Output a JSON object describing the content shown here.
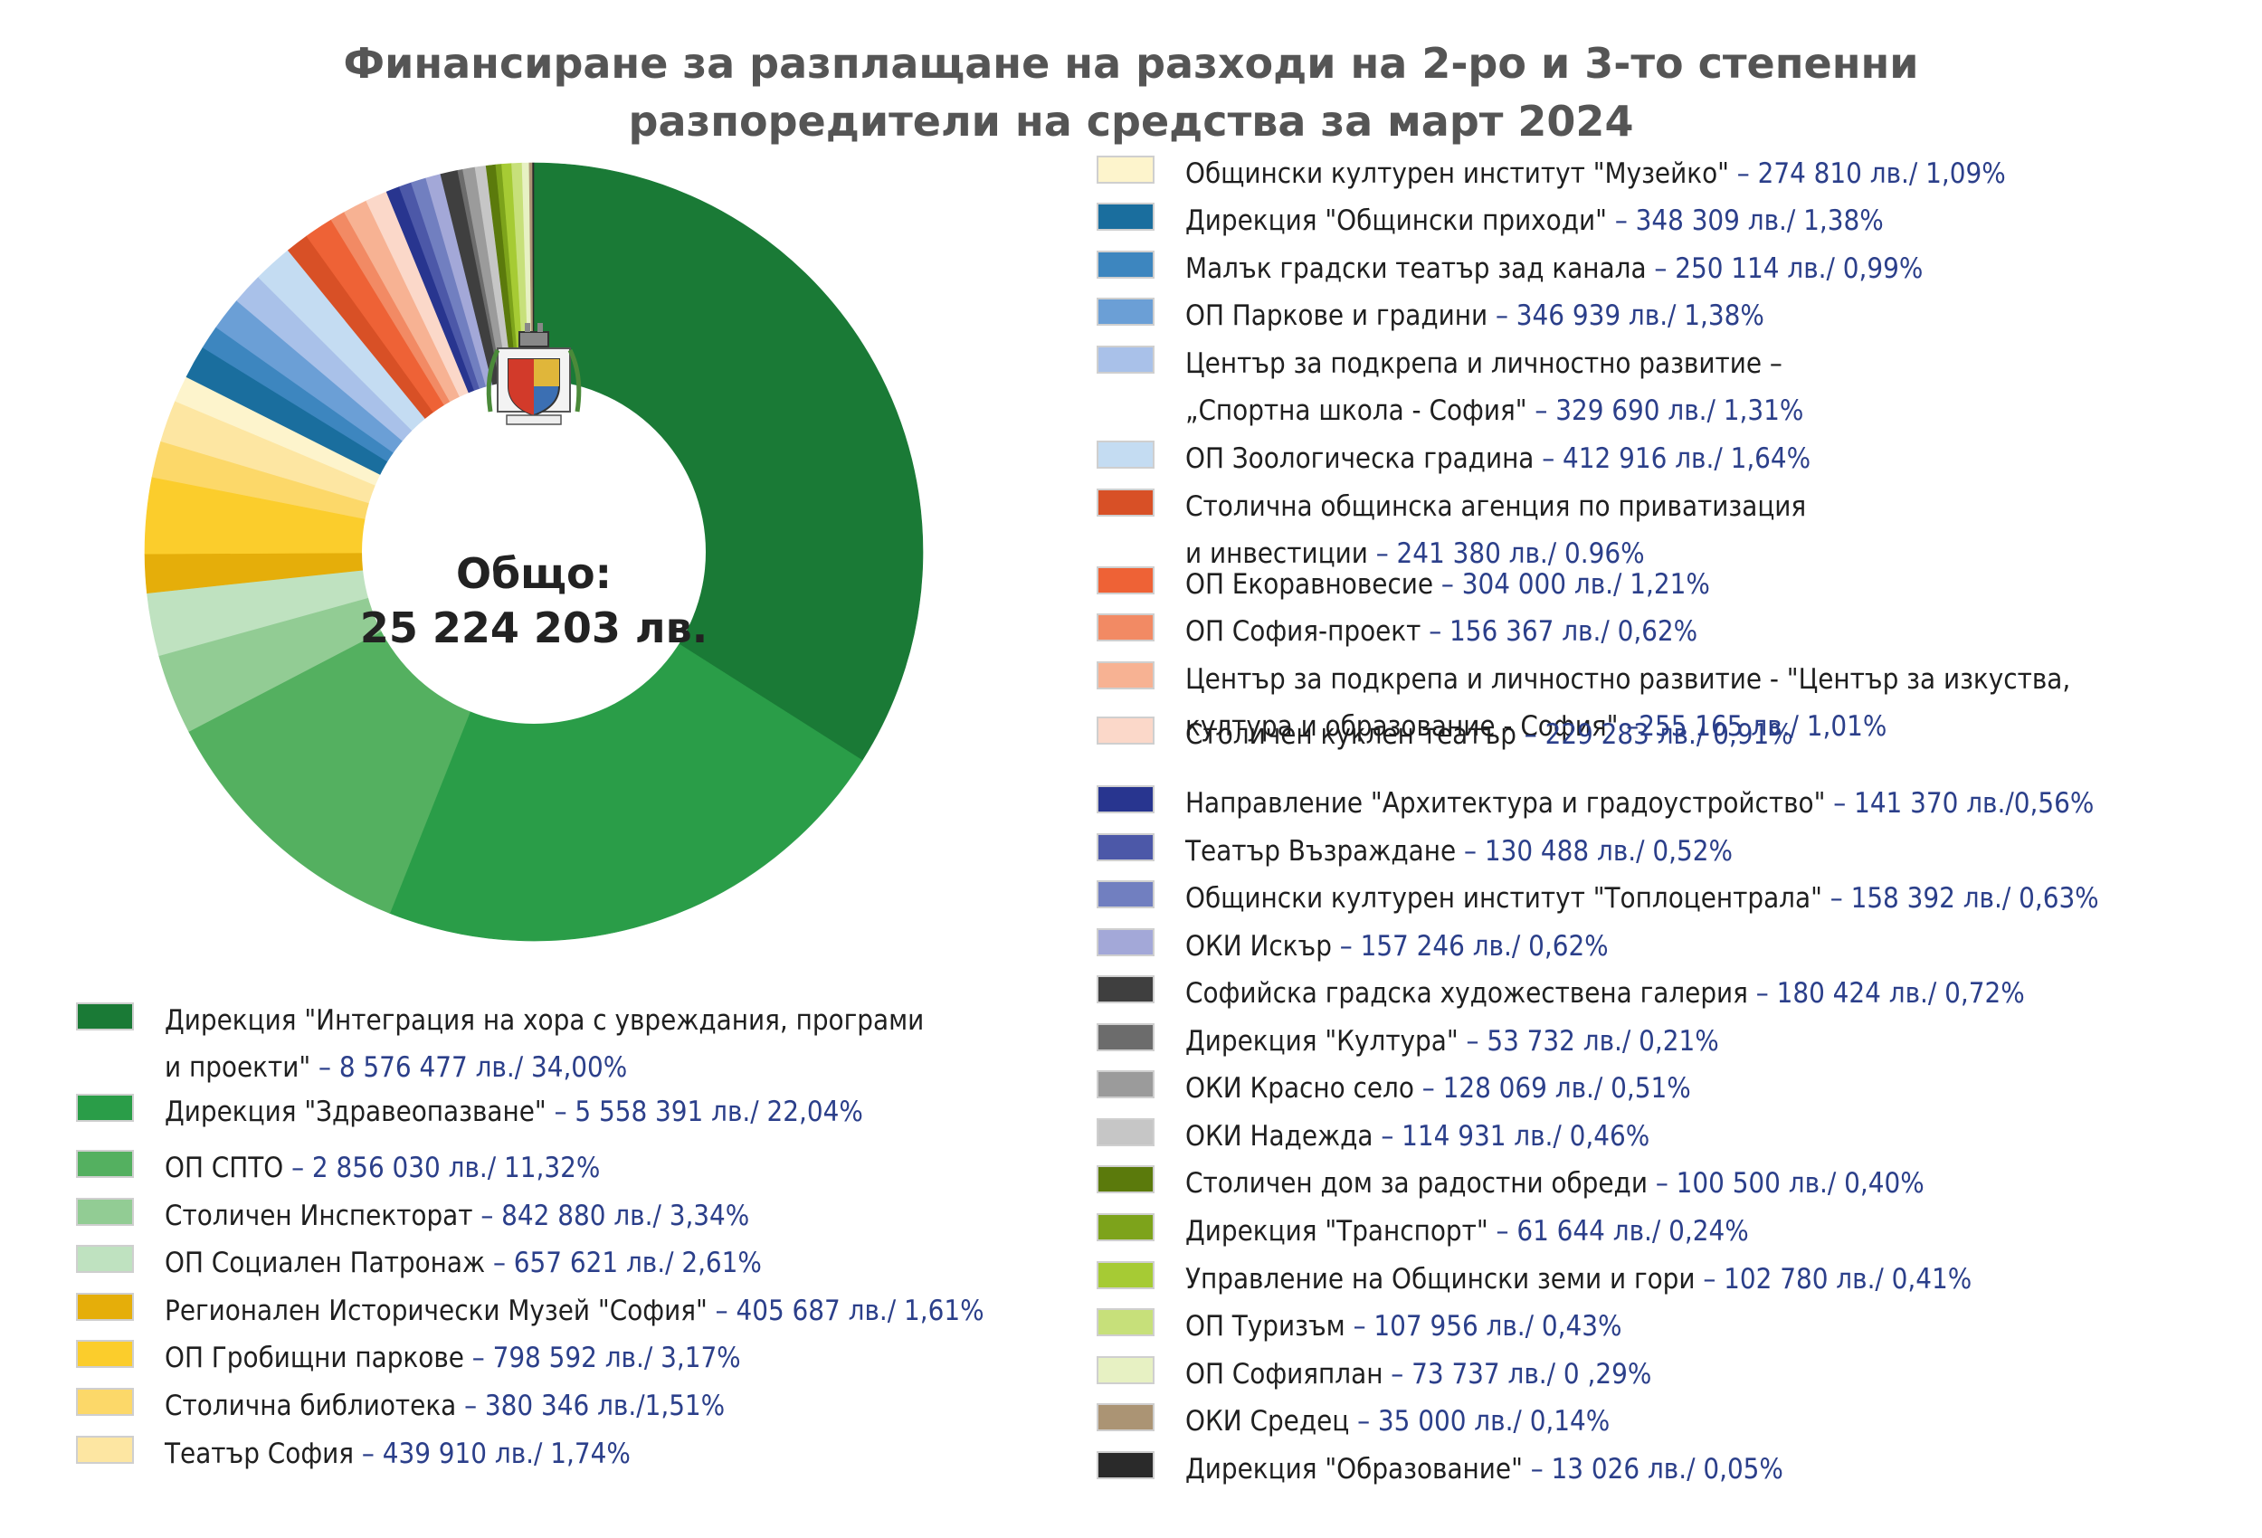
{
  "chart_data": {
    "type": "pie",
    "title_lines": [
      "Финансиране за разплащане на разходи на 2-ро и 3-то степенни",
      "разпоредители на средства за март 2024"
    ],
    "center_label": [
      "Общо:",
      "25 224 203 лв."
    ],
    "slices": [
      {
        "label": "Дирекция \"Интеграция на хора с увреждания, програми и проекти\"",
        "text_lines": [
          "Дирекция \"Интеграция на хора с увреждания, програми",
          "и проекти\""
        ],
        "value_text": " – 8 576 477 лв./ 34,00%",
        "value": 8576477,
        "percent": 34.0,
        "color": "#1a7a36"
      },
      {
        "label": "Дирекция \"Здравеопазване\"",
        "text_lines": [
          "Дирекция \"Здравеопазване\""
        ],
        "value_text": " – 5 558 391 лв./ 22,04%",
        "value": 5558391,
        "percent": 22.04,
        "color": "#2a9d48"
      },
      {
        "label": "ОП СПТО",
        "text_lines": [
          "ОП СПТО"
        ],
        "value_text": " – 2 856 030 лв./ 11,32%",
        "value": 2856030,
        "percent": 11.32,
        "color": "#54b060"
      },
      {
        "label": "Столичен Инспекторат",
        "text_lines": [
          "Столичен Инспекторат"
        ],
        "value_text": " – 842 880 лв./ 3,34%",
        "value": 842880,
        "percent": 3.34,
        "color": "#92cc94"
      },
      {
        "label": "ОП Социален Патронаж",
        "text_lines": [
          "ОП Социален Патронаж"
        ],
        "value_text": " – 657 621 лв./ 2,61%",
        "value": 657621,
        "percent": 2.61,
        "color": "#bfe2c0"
      },
      {
        "label": "Регионален Исторически Музей \"София\"",
        "text_lines": [
          "Регионален Исторически Музей \"София\""
        ],
        "value_text": " – 405 687 лв./ 1,61%",
        "value": 405687,
        "percent": 1.61,
        "color": "#e5ae0a"
      },
      {
        "label": "ОП Гробищни паркове",
        "text_lines": [
          "ОП Гробищни паркове"
        ],
        "value_text": " – 798 592 лв./ 3,17%",
        "value": 798592,
        "percent": 3.17,
        "color": "#fbcd2c"
      },
      {
        "label": "Столична библиотека",
        "text_lines": [
          "Столична библиотека"
        ],
        "value_text": " – 380 346 лв./1,51%",
        "value": 380346,
        "percent": 1.51,
        "color": "#fcd869"
      },
      {
        "label": "Театър София",
        "text_lines": [
          "Театър София"
        ],
        "value_text": " – 439 910 лв./ 1,74%",
        "value": 439910,
        "percent": 1.74,
        "color": "#fde6a2"
      },
      {
        "label": "Общински културен институт \"Музейко\"",
        "text_lines": [
          "Общински културен институт \"Музейко\""
        ],
        "value_text": " – 274 810 лв./ 1,09%",
        "value": 274810,
        "percent": 1.09,
        "color": "#fdf4cc"
      },
      {
        "label": "Дирекция \"Общински приходи\"",
        "text_lines": [
          "Дирекция \"Общински приходи\""
        ],
        "value_text": " – 348 309 лв./ 1,38%",
        "value": 348309,
        "percent": 1.38,
        "color": "#1a6e9e"
      },
      {
        "label": "Малък градски театър зад канала",
        "text_lines": [
          "Малък градски театър зад канала"
        ],
        "value_text": " – 250 114 лв./ 0,99%",
        "value": 250114,
        "percent": 0.99,
        "color": "#3d86bf"
      },
      {
        "label": "ОП Паркове и градини",
        "text_lines": [
          "ОП Паркове и градини"
        ],
        "value_text": " – 346 939 лв./ 1,38%",
        "value": 346939,
        "percent": 1.38,
        "color": "#6b9fd6"
      },
      {
        "label": "Център за подкрепа и личностно развитие – „Спортна школа - София“",
        "text_lines": [
          "Център за подкрепа и личностно развитие –",
          "„Спортна школа - София\""
        ],
        "value_text": " – 329 690 лв./ 1,31%",
        "value": 329690,
        "percent": 1.31,
        "color": "#a9c1e9"
      },
      {
        "label": "ОП Зоологическа градина",
        "text_lines": [
          "ОП Зоологическа градина"
        ],
        "value_text": " – 412 916 лв./ 1,64%",
        "value": 412916,
        "percent": 1.64,
        "color": "#c4dcf2"
      },
      {
        "label": "Столична общинска агенция по приватизация и инвестиции",
        "text_lines": [
          "Столична общинска агенция по приватизация",
          "и инвестиции"
        ],
        "value_text": " – 241 380 лв./ 0.96%",
        "value": 241380,
        "percent": 0.96,
        "color": "#d85026"
      },
      {
        "label": "ОП Екоравновесие",
        "text_lines": [
          "ОП Екоравновесие"
        ],
        "value_text": " – 304 000 лв./ 1,21%",
        "value": 304000,
        "percent": 1.21,
        "color": "#ee6236"
      },
      {
        "label": "ОП София-проект",
        "text_lines": [
          "ОП София-проект"
        ],
        "value_text": " – 156 367 лв./ 0,62%",
        "value": 156367,
        "percent": 0.62,
        "color": "#f28a64"
      },
      {
        "label": "Център за подкрепа и личностно развитие - \"Център за изкуства, култура и образование - София\"",
        "text_lines": [
          "Център за подкрепа и личностно развитие - \"Център за изкуства,",
          "култура и образование - София\""
        ],
        "value_text": " –255 165 лв./ 1,01%",
        "value": 255165,
        "percent": 1.01,
        "color": "#f7b293"
      },
      {
        "label": "Столичен куклен театър",
        "text_lines": [
          "Столичен куклен театър"
        ],
        "value_text": " – 229 283 лв./ 0,91%",
        "value": 229283,
        "percent": 0.91,
        "color": "#fbd8c9"
      },
      {
        "label": "Направление \"Архитектура и градоустройство\"",
        "text_lines": [
          "Направление \"Архитектура и градоустройство\""
        ],
        "value_text": " – 141 370 лв./0,56%",
        "value": 141370,
        "percent": 0.56,
        "color": "#28358f"
      },
      {
        "label": "Театър Възраждане",
        "text_lines": [
          "Театър Възраждане"
        ],
        "value_text": " – 130 488 лв./ 0,52%",
        "value": 130488,
        "percent": 0.52,
        "color": "#4c58a8"
      },
      {
        "label": "Общински културен институт \"Топлоцентрала\"",
        "text_lines": [
          "Общински културен институт \"Топлоцентрала\""
        ],
        "value_text": " – 158 392 лв./ 0,63%",
        "value": 158392,
        "percent": 0.63,
        "color": "#717fc0"
      },
      {
        "label": "ОКИ Искър",
        "text_lines": [
          "ОКИ Искър"
        ],
        "value_text": " – 157 246 лв./ 0,62%",
        "value": 157246,
        "percent": 0.62,
        "color": "#a3a8d8"
      },
      {
        "label": "Софийска градска художествена галерия",
        "text_lines": [
          "Софийска градска художествена галерия"
        ],
        "value_text": " – 180 424 лв./ 0,72%",
        "value": 180424,
        "percent": 0.72,
        "color": "#3f3f3f"
      },
      {
        "label": "Дирекция \"Култура\"",
        "text_lines": [
          "Дирекция \"Култура\""
        ],
        "value_text": " – 53 732 лв./ 0,21%",
        "value": 53732,
        "percent": 0.21,
        "color": "#6c6c6c"
      },
      {
        "label": "ОКИ Красно село",
        "text_lines": [
          "ОКИ Красно село"
        ],
        "value_text": " – 128 069 лв./ 0,51%",
        "value": 128069,
        "percent": 0.51,
        "color": "#9b9b9b"
      },
      {
        "label": "ОКИ Надежда",
        "text_lines": [
          "ОКИ Надежда"
        ],
        "value_text": " – 114 931 лв./ 0,46%",
        "value": 114931,
        "percent": 0.46,
        "color": "#c6c6c6"
      },
      {
        "label": "Столичен дом за радостни обреди",
        "text_lines": [
          "Столичен дом за радостни обреди"
        ],
        "value_text": " – 100 500 лв./ 0,40%",
        "value": 100500,
        "percent": 0.4,
        "color": "#5b7a0c"
      },
      {
        "label": "Дирекция \"Транспорт\"",
        "text_lines": [
          "Дирекция \"Транспорт\""
        ],
        "value_text": " – 61 644 лв./ 0,24%",
        "value": 61644,
        "percent": 0.24,
        "color": "#7da31b"
      },
      {
        "label": "Управление на Общински земи и гори",
        "text_lines": [
          "Управление на Общински земи и гори"
        ],
        "value_text": " – 102 780 лв./ 0,41%",
        "value": 102780,
        "percent": 0.41,
        "color": "#a6cb34"
      },
      {
        "label": "ОП Туризъм",
        "text_lines": [
          "ОП Туризъм"
        ],
        "value_text": " – 107 956 лв./ 0,43%",
        "value": 107956,
        "percent": 0.43,
        "color": "#c7e07a"
      },
      {
        "label": "ОП Софияплан",
        "text_lines": [
          "ОП Софияплан"
        ],
        "value_text": " – 73 737 лв./ 0 ,29%",
        "value": 73737,
        "percent": 0.29,
        "color": "#e7f1c3"
      },
      {
        "label": "ОКИ Средец",
        "text_lines": [
          "ОКИ Средец"
        ],
        "value_text": " – 35 000 лв./ 0,14%",
        "value": 35000,
        "percent": 0.14,
        "color": "#ab9474"
      },
      {
        "label": "Дирекция \"Образование\"",
        "text_lines": [
          "Дирекция \"Образование\""
        ],
        "value_text": " – 13 026 лв./ 0,05%",
        "value": 13026,
        "percent": 0.05,
        "color": "#2a2a2a"
      }
    ]
  }
}
